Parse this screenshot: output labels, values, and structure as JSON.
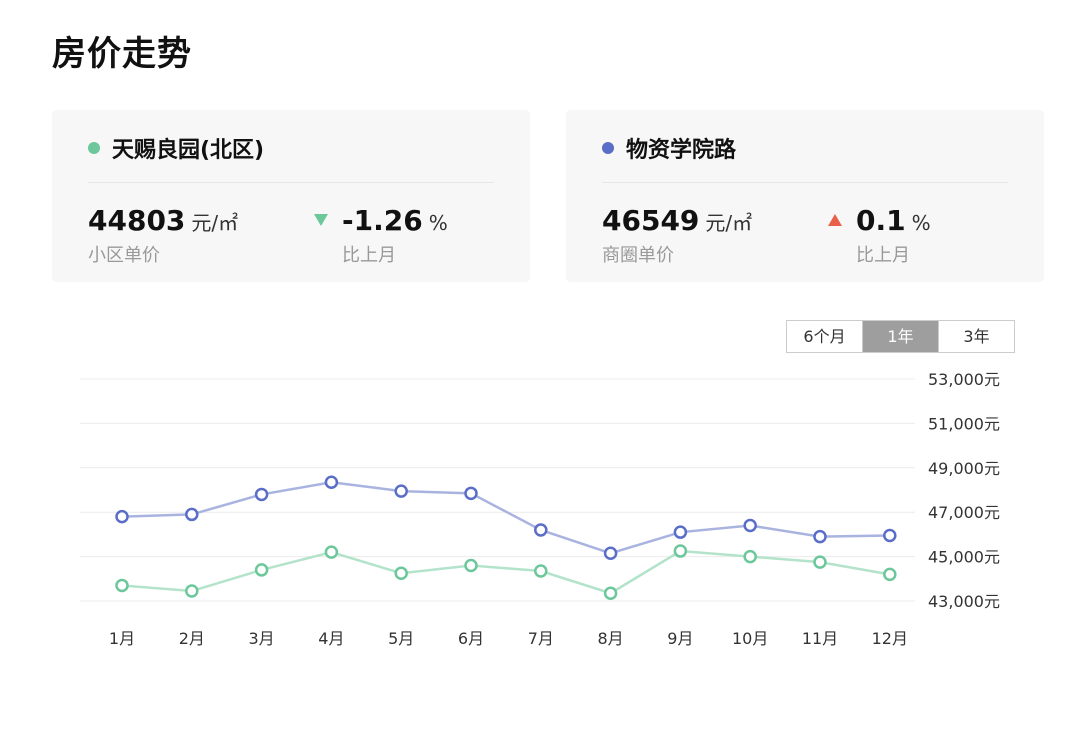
{
  "title": "房价走势",
  "cards": [
    {
      "name": "天赐良园(北区)",
      "color": "#6cc79a",
      "price": "44803",
      "price_unit": "元/㎡",
      "price_label": "小区单价",
      "change": "-1.26",
      "change_unit": "%",
      "change_label": "比上月",
      "direction": "down"
    },
    {
      "name": "物资学院路",
      "color": "#5b6ec7",
      "price": "46549",
      "price_unit": "元/㎡",
      "price_label": "商圈单价",
      "change": "0.1",
      "change_unit": "%",
      "change_label": "比上月",
      "direction": "up"
    }
  ],
  "range_buttons": [
    "6个月",
    "1年",
    "3年"
  ],
  "range_active": "1年",
  "chart_data": {
    "type": "line",
    "categories": [
      "1月",
      "2月",
      "3月",
      "4月",
      "5月",
      "6月",
      "7月",
      "8月",
      "9月",
      "10月",
      "11月",
      "12月"
    ],
    "series": [
      {
        "name": "物资学院路",
        "color": "#5b6ec7",
        "line_color": "#a9b3e0",
        "values": [
          46800,
          46900,
          47800,
          48350,
          47950,
          47850,
          46200,
          45150,
          46100,
          46400,
          45900,
          45950
        ]
      },
      {
        "name": "天赐良园(北区)",
        "color": "#6cc79a",
        "line_color": "#b3e3ca",
        "values": [
          43700,
          43450,
          44400,
          45200,
          44250,
          44600,
          44350,
          43350,
          45250,
          45000,
          44750,
          44200
        ]
      }
    ],
    "ylim": [
      43000,
      53000
    ],
    "yticks": [
      "53,000元",
      "51,000元",
      "49,000元",
      "47,000元",
      "45,000元",
      "43,000元"
    ],
    "ytick_values": [
      53000,
      51000,
      49000,
      47000,
      45000,
      43000
    ],
    "grid": true
  }
}
